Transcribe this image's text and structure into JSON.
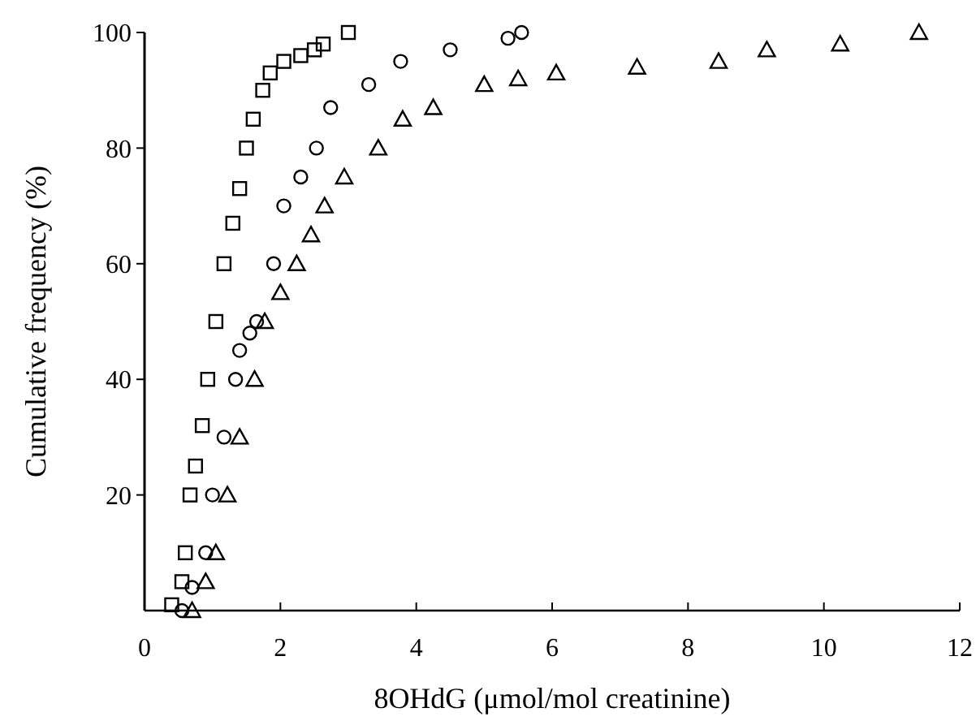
{
  "chart_data": {
    "type": "scatter",
    "xlabel": "8OHdG (μmol/mol creatinine)",
    "ylabel": "Cumulative frequency (%)",
    "xlim": [
      0,
      12
    ],
    "ylim": [
      0,
      100
    ],
    "xticks": [
      0,
      2,
      4,
      6,
      8,
      10,
      12
    ],
    "yticks": [
      20,
      40,
      60,
      80,
      100
    ],
    "grid": false,
    "series": [
      {
        "color": "#000000",
        "marker": "square",
        "x": [
          0.4,
          0.55,
          0.6,
          0.67,
          0.75,
          0.85,
          0.93,
          1.05,
          1.17,
          1.3,
          1.4,
          1.5,
          1.6,
          1.74,
          1.85,
          2.05,
          2.3,
          2.5,
          2.63,
          3.0
        ],
        "values": [
          1,
          5,
          10,
          20,
          25,
          32,
          40,
          50,
          60,
          67,
          73,
          80,
          85,
          90,
          93,
          95,
          96,
          97,
          98,
          100
        ]
      },
      {
        "color": "#000000",
        "marker": "circle",
        "x": [
          0.55,
          0.7,
          0.9,
          1.0,
          1.17,
          1.34,
          1.4,
          1.55,
          1.65,
          1.9,
          2.05,
          2.3,
          2.53,
          2.74,
          3.3,
          3.77,
          4.5,
          5.35,
          5.55
        ],
        "values": [
          0,
          4,
          10,
          20,
          30,
          40,
          45,
          48,
          50,
          60,
          70,
          75,
          80,
          87,
          91,
          95,
          97,
          99,
          100
        ]
      },
      {
        "color": "#000000",
        "marker": "triangle",
        "x": [
          0.7,
          0.9,
          1.05,
          1.22,
          1.4,
          1.62,
          1.77,
          2.0,
          2.24,
          2.45,
          2.65,
          2.94,
          3.44,
          3.8,
          4.25,
          5.0,
          5.5,
          6.06,
          7.25,
          8.45,
          9.16,
          10.24,
          11.4
        ],
        "values": [
          0,
          5,
          10,
          20,
          30,
          40,
          50,
          55,
          60,
          65,
          70,
          75,
          80,
          85,
          87,
          91,
          92,
          93,
          94,
          95,
          97,
          98,
          100
        ]
      }
    ]
  }
}
